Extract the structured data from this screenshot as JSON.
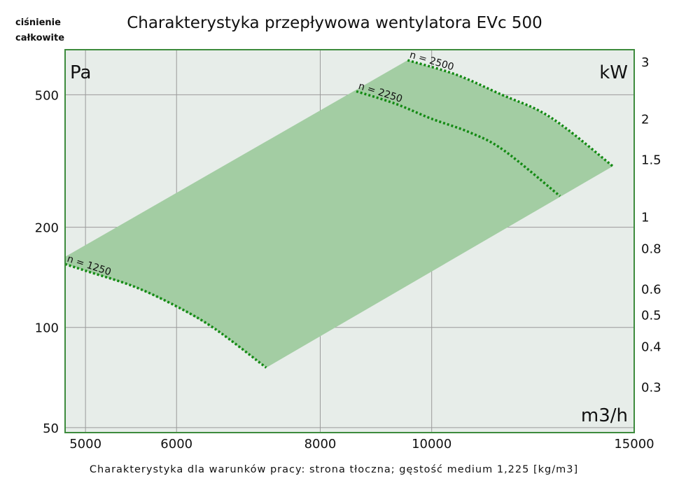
{
  "chart_data": {
    "type": "area",
    "title": "Charakterystyka przepływowa wentylatora EVc 500",
    "ylabel": [
      "ciśnienie",
      "całkowite"
    ],
    "footer": "Charakterystyka dla warunków pracy: strona tłoczna; gęstość medium 1,225 [kg/m3]",
    "units": {
      "left": "Pa",
      "right": "kW",
      "x": "m3/h"
    },
    "x_scale": "log",
    "y_scale": "log",
    "xlim": [
      4800,
      15000
    ],
    "ylim": [
      48.3,
      683
    ],
    "y2lim": [
      0.217,
      3.26
    ],
    "grid": true,
    "x_ticks": [
      5000,
      6000,
      8000,
      10000,
      15000
    ],
    "y_ticks": [
      50,
      100,
      200,
      500
    ],
    "y2_ticks": [
      0.3,
      0.4,
      0.5,
      0.6,
      0.8,
      1,
      1.5,
      2,
      3
    ],
    "colors": {
      "plot_bg": "#e7ede9",
      "area": "#a3cda3",
      "curve": "#138a13",
      "frame": "#3d8b3d",
      "grid": "#9a9a9a"
    },
    "series": [
      {
        "name": "n = 2500",
        "x": [
          9530,
          10500,
          11510,
          12400,
          13170,
          14370
        ],
        "y": [
          635,
          575,
          500,
          448,
          390,
          305
        ]
      },
      {
        "name": "n = 2250",
        "x": [
          8600,
          9300,
          9990,
          10800,
          11560,
          12930
        ],
        "y": [
          512,
          470,
          424,
          385,
          340,
          248
        ]
      },
      {
        "name": "n = 1250",
        "x": [
          4800,
          5000,
          5500,
          5990,
          6480,
          7180
        ],
        "y": [
          155,
          148,
          133,
          116,
          99,
          75.7
        ]
      }
    ],
    "area_top_left": [
      4800,
      163
    ]
  }
}
